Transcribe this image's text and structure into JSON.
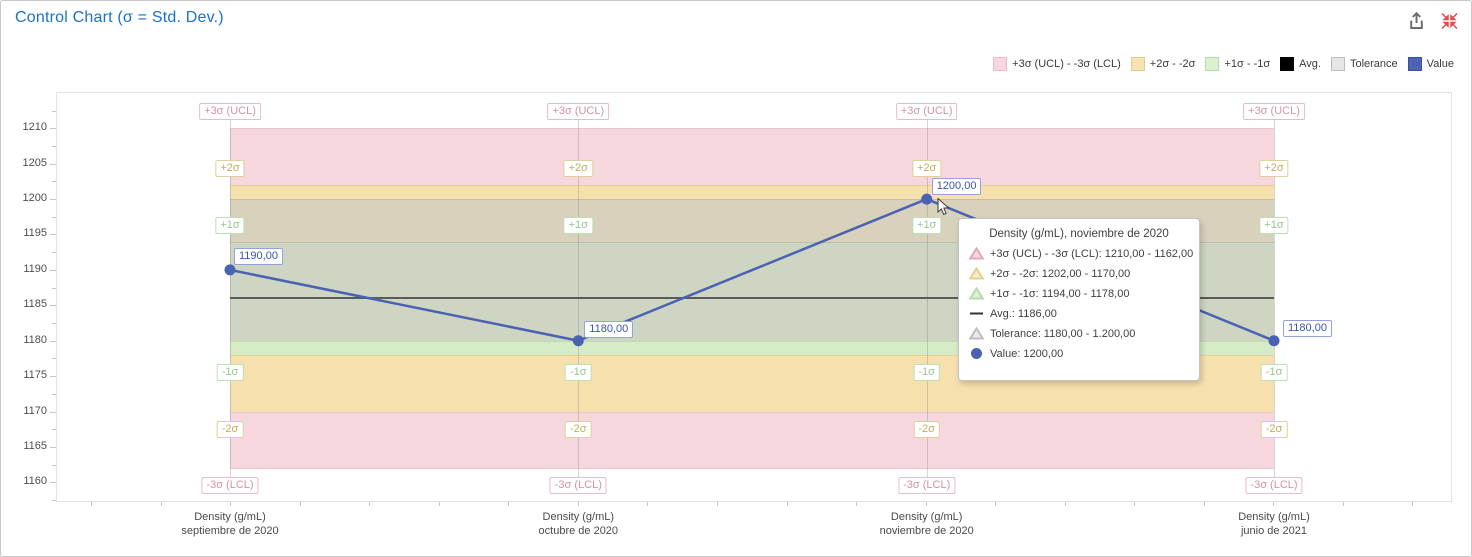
{
  "header": {
    "title": "Control Chart (σ = Std. Dev.)",
    "icons": [
      {
        "name": "export-icon"
      },
      {
        "name": "collapse-icon"
      }
    ]
  },
  "colors": {
    "title_blue": "#1973c8",
    "value_blue": "#4a62b2",
    "avg_gray": "#5a5a5a",
    "export_gray": "#6b6b6b",
    "collapse_red": "#e14b4b",
    "band_pink": "#f7d7de",
    "band_yellow": "#f6e0ae",
    "band_green": "#d6ecc7",
    "band_tan_overlap": "#d8d1bc",
    "band_sage_overlap": "#ced5c3",
    "tolerance_gray": "#d9d9d9"
  },
  "legend": {
    "items": [
      {
        "label": "+3σ (UCL) - -3σ (LCL)",
        "swatch": "pink"
      },
      {
        "label": "+2σ - -2σ",
        "swatch": "yellow"
      },
      {
        "label": "+1σ - -1σ",
        "swatch": "green"
      },
      {
        "label": "Avg.",
        "swatch": "black"
      },
      {
        "label": "Tolerance",
        "swatch": "gray"
      },
      {
        "label": "Value",
        "swatch": "blue"
      }
    ],
    "swatches": {
      "pink": {
        "bg": "#f8d8de",
        "border": "#eab9c3"
      },
      "yellow": {
        "bg": "#f5e3b2",
        "border": "#ddcd92"
      },
      "green": {
        "bg": "#dcf0d2",
        "border": "#b6dcaa"
      },
      "black": {
        "bg": "#000000",
        "border": "#000000"
      },
      "gray": {
        "bg": "#e6e6e6",
        "border": "#bdbdbd"
      },
      "blue": {
        "bg": "#4b63b0",
        "border": "#3c52a0"
      }
    }
  },
  "axes": {
    "y_ticks": [
      "1210",
      "1205",
      "1200",
      "1195",
      "1190",
      "1185",
      "1180",
      "1175",
      "1170",
      "1165",
      "1160"
    ],
    "x_categories": [
      [
        "Density (g/mL)",
        "septiembre de 2020"
      ],
      [
        "Density (g/mL)",
        "octubre de 2020"
      ],
      [
        "Density (g/mL)",
        "noviembre de 2020"
      ],
      [
        "Density (g/mL)",
        "junio de 2021"
      ]
    ]
  },
  "sigma_labels": [
    {
      "text": "+3σ (UCL)",
      "value": 1210,
      "side": "above",
      "style": "pink"
    },
    {
      "text": "+2σ",
      "value": 1202,
      "side": "above",
      "style": "yellow"
    },
    {
      "text": "+1σ",
      "value": 1194,
      "side": "above",
      "style": "green"
    },
    {
      "text": "-1σ",
      "value": 1178,
      "side": "below",
      "style": "green"
    },
    {
      "text": "-2σ",
      "value": 1170,
      "side": "below",
      "style": "yellow"
    },
    {
      "text": "-3σ (LCL)",
      "value": 1162,
      "side": "below",
      "style": "pink"
    }
  ],
  "sigma_label_styles": {
    "pink": {
      "text": "#d294a1",
      "border": "#e7bcc6"
    },
    "yellow": {
      "text": "#c1ae5e",
      "border": "#ddd09c"
    },
    "green": {
      "text": "#93c791",
      "border": "#bcdfb6"
    }
  },
  "band_slices": [
    {
      "from": 1202,
      "to": 1210,
      "color": "#f7d7de",
      "edge": "#eec5cf"
    },
    {
      "from": 1200,
      "to": 1202,
      "color": "#f6e0ae",
      "edge": "#e8d094"
    },
    {
      "from": 1194,
      "to": 1200,
      "color": "#d8d1bc",
      "edge": "#c5bfa4"
    },
    {
      "from": 1180,
      "to": 1194,
      "color": "#ced5c3",
      "edge": "#b8c0ab"
    },
    {
      "from": 1178,
      "to": 1180,
      "color": "#d6ecc7",
      "edge": "#bfdcae"
    },
    {
      "from": 1170,
      "to": 1178,
      "color": "#f6e0ae",
      "edge": "#e8d094"
    },
    {
      "from": 1162,
      "to": 1170,
      "color": "#f7d7de",
      "edge": "#eec5cf"
    }
  ],
  "points": [
    {
      "value": 1190,
      "label": "1190,00"
    },
    {
      "value": 1180,
      "label": "1180,00"
    },
    {
      "value": 1200,
      "label": "1200,00"
    },
    {
      "value": 1180,
      "label": "1180,00"
    }
  ],
  "tooltip": {
    "title": "Density (g/mL), noviembre de 2020",
    "rows": [
      {
        "icon": "band-pink",
        "text": "+3σ (UCL) - -3σ (LCL): 1210,00 - 1162,00"
      },
      {
        "icon": "band-yellow",
        "text": "+2σ - -2σ: 1202,00 - 1170,00"
      },
      {
        "icon": "band-green",
        "text": "+1σ - -1σ: 1194,00 - 1178,00"
      },
      {
        "icon": "avg",
        "text": "Avg.: 1186,00"
      },
      {
        "icon": "band-gray",
        "text": "Tolerance: 1180,00 - 1.200,00"
      },
      {
        "icon": "value",
        "text": "Value: 1200,00"
      }
    ]
  },
  "chart_data": {
    "type": "line",
    "title": "Control Chart (σ = Std. Dev.)",
    "categories": [
      "Density (g/mL) septiembre de 2020",
      "Density (g/mL) octubre de 2020",
      "Density (g/mL) noviembre de 2020",
      "Density (g/mL) junio de 2021"
    ],
    "series": [
      {
        "name": "Value",
        "type": "line",
        "color": "#4a62b2",
        "values": [
          1190,
          1180,
          1200,
          1180
        ]
      },
      {
        "name": "Avg.",
        "type": "line",
        "color": "#5a5a5a",
        "values": [
          1186,
          1186,
          1186,
          1186
        ]
      }
    ],
    "bands": [
      {
        "name": "+3σ (UCL) - -3σ (LCL)",
        "from": 1162,
        "to": 1210,
        "color": "#f7d7de"
      },
      {
        "name": "+2σ - -2σ",
        "from": 1170,
        "to": 1202,
        "color": "#f6e0ae"
      },
      {
        "name": "+1σ - -1σ",
        "from": 1178,
        "to": 1194,
        "color": "#d6ecc7"
      },
      {
        "name": "Tolerance",
        "from": 1180,
        "to": 1200,
        "color": "#d9d9d9"
      }
    ],
    "point_labels": [
      "1190,00",
      "1180,00",
      "1200,00",
      "1180,00"
    ],
    "ylim": [
      1157.5,
      1215
    ],
    "y_tick_step": 5,
    "grid": false,
    "legend_position": "top-right"
  }
}
